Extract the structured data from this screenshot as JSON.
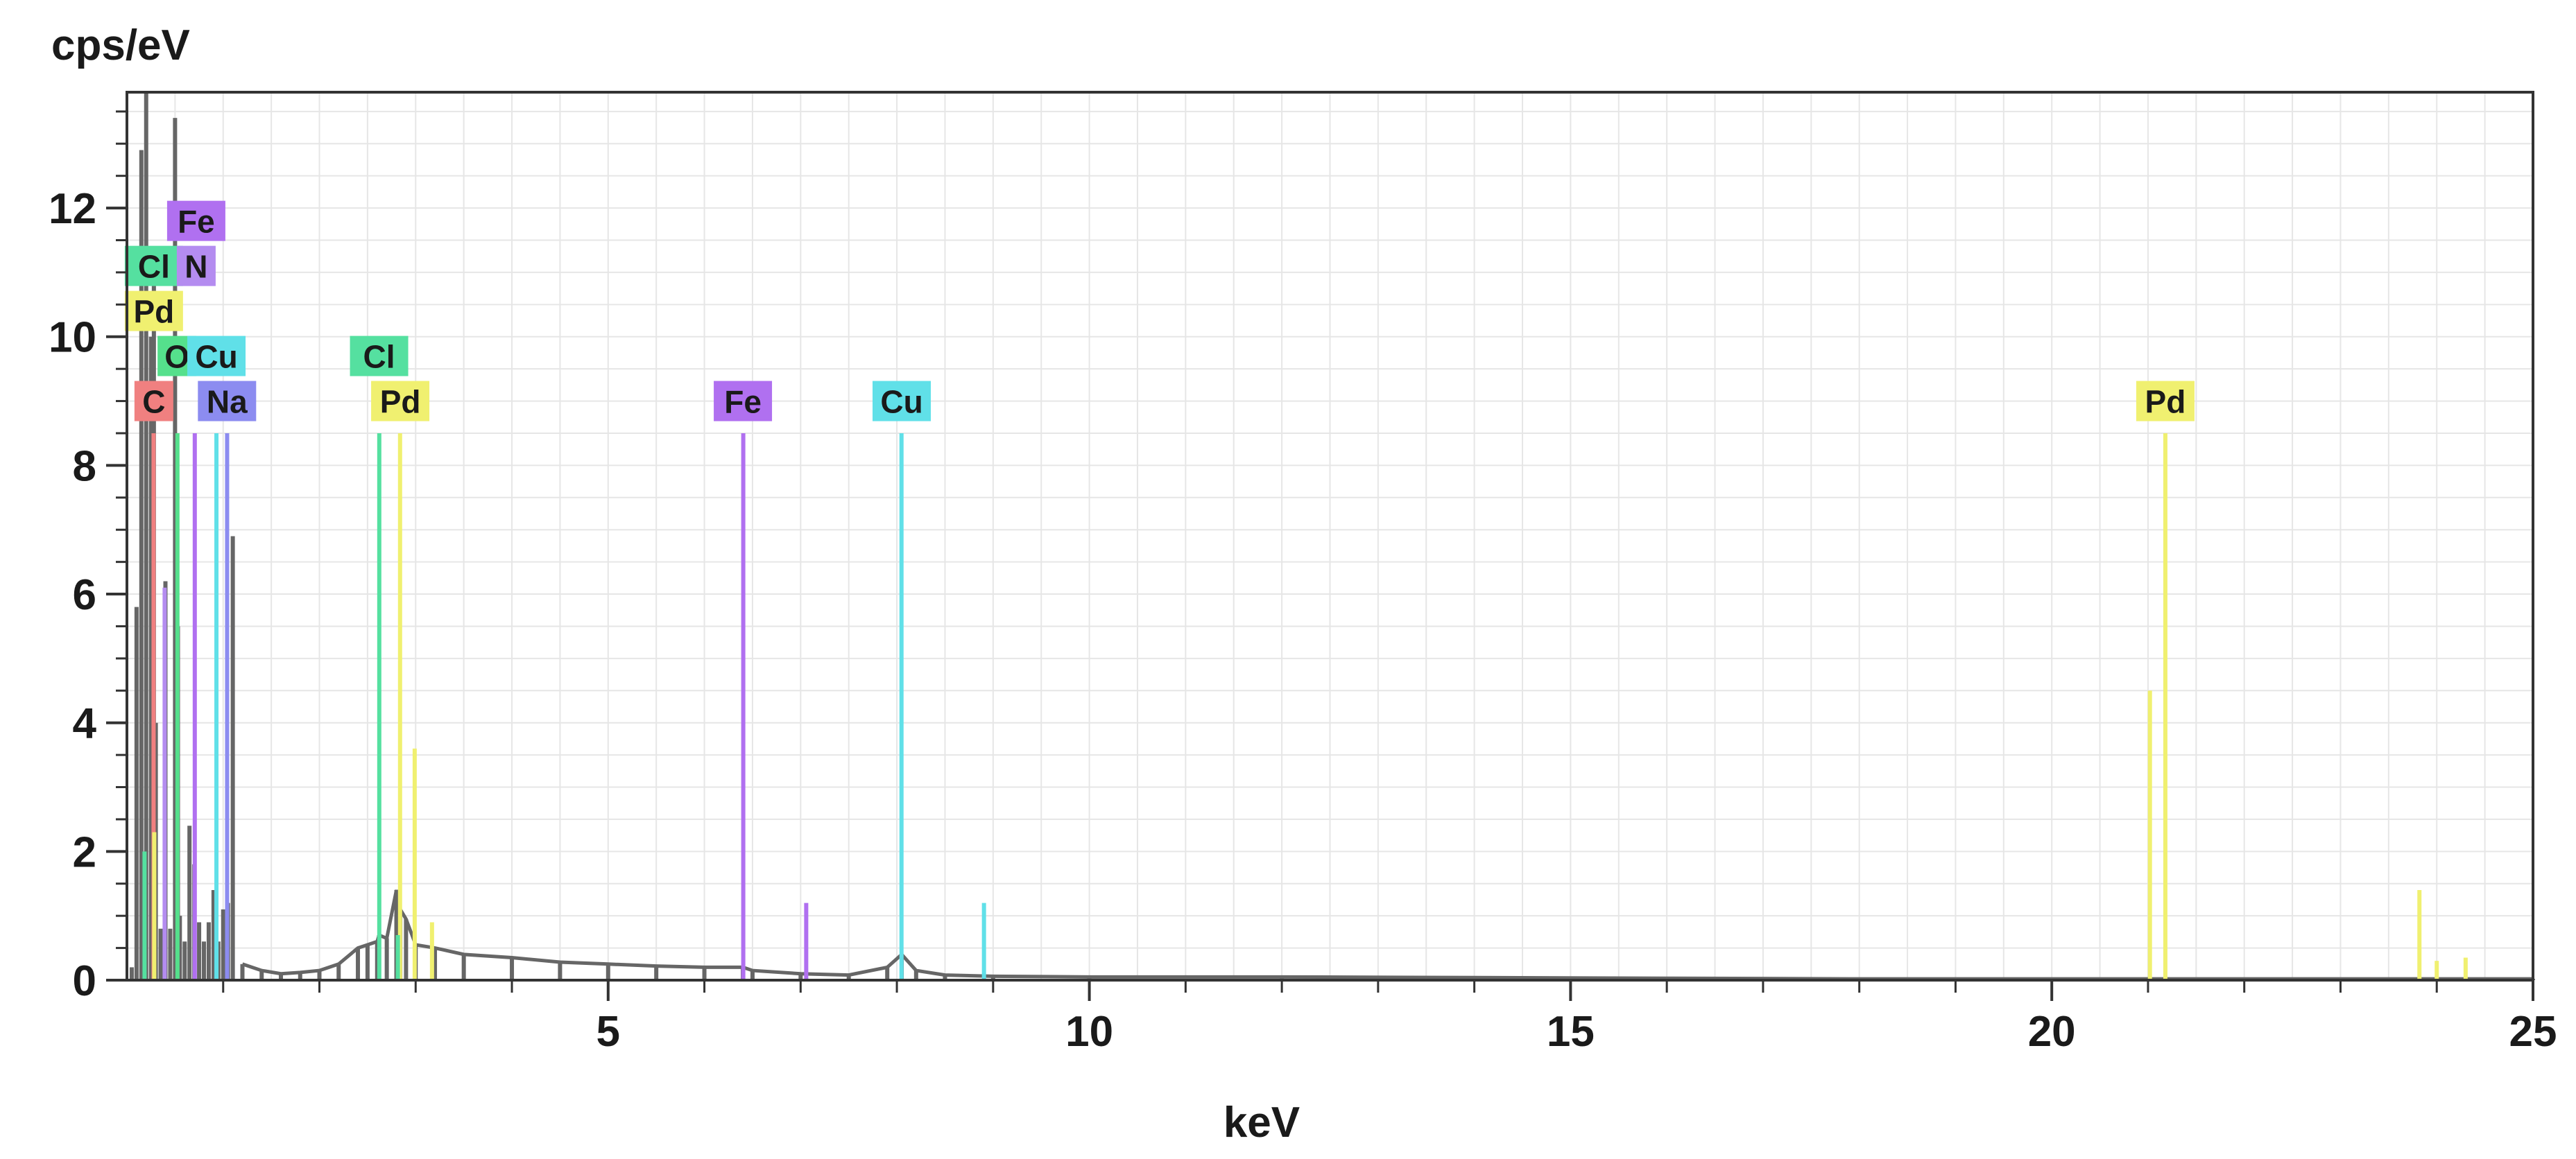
{
  "chart_data": {
    "type": "bar",
    "xlabel": "keV",
    "ylabel": "cps/eV",
    "xlim": [
      0,
      25
    ],
    "ylim": [
      0,
      13.8
    ],
    "x_ticks": [
      5,
      10,
      15,
      20,
      25
    ],
    "y_ticks": [
      0,
      2,
      4,
      6,
      8,
      10,
      12
    ],
    "grid": true,
    "element_colors": {
      "C": "#f08080",
      "N": "#b48cf0",
      "O": "#55e08c",
      "Na": "#8c8cf0",
      "Cl": "#55e0a0",
      "Fe": "#b070f0",
      "Cu": "#60e0e8",
      "Pd": "#f0f070"
    },
    "element_labels": [
      {
        "element": "Fe",
        "x": 0.72,
        "y": 11.8
      },
      {
        "element": "Cl",
        "x": 0.28,
        "y": 11.1
      },
      {
        "element": "N",
        "x": 0.72,
        "y": 11.1
      },
      {
        "element": "Pd",
        "x": 0.28,
        "y": 10.4
      },
      {
        "element": "O",
        "x": 0.52,
        "y": 9.7
      },
      {
        "element": "Cu",
        "x": 0.93,
        "y": 9.7
      },
      {
        "element": "C",
        "x": 0.28,
        "y": 9.0
      },
      {
        "element": "Na",
        "x": 1.04,
        "y": 9.0
      },
      {
        "element": "Cl",
        "x": 2.62,
        "y": 9.7
      },
      {
        "element": "Pd",
        "x": 2.84,
        "y": 9.0
      },
      {
        "element": "Fe",
        "x": 6.4,
        "y": 9.0
      },
      {
        "element": "Cu",
        "x": 8.05,
        "y": 9.0
      },
      {
        "element": "Pd",
        "x": 21.18,
        "y": 9.0
      }
    ],
    "element_lines": [
      {
        "element": "C",
        "x": 0.277,
        "y": 8.5
      },
      {
        "element": "N",
        "x": 0.392,
        "y": 6.1
      },
      {
        "element": "O",
        "x": 0.525,
        "y": 8.5
      },
      {
        "element": "Fe",
        "x": 0.705,
        "y": 8.5
      },
      {
        "element": "Cu",
        "x": 0.93,
        "y": 8.5
      },
      {
        "element": "Na",
        "x": 1.041,
        "y": 8.5
      },
      {
        "element": "Pd",
        "x": 0.284,
        "y": 2.3
      },
      {
        "element": "Cl",
        "x": 0.183,
        "y": 2.0
      },
      {
        "element": "Cl",
        "x": 2.622,
        "y": 8.5
      },
      {
        "element": "Pd",
        "x": 2.838,
        "y": 8.5
      },
      {
        "element": "Pd",
        "x": 2.99,
        "y": 3.6
      },
      {
        "element": "Cl",
        "x": 2.815,
        "y": 0.7
      },
      {
        "element": "Pd",
        "x": 3.17,
        "y": 0.9
      },
      {
        "element": "Fe",
        "x": 6.404,
        "y": 8.5
      },
      {
        "element": "Fe",
        "x": 7.058,
        "y": 1.2
      },
      {
        "element": "Cu",
        "x": 8.048,
        "y": 8.5
      },
      {
        "element": "Cu",
        "x": 8.905,
        "y": 1.2
      },
      {
        "element": "Pd",
        "x": 21.02,
        "y": 4.5
      },
      {
        "element": "Pd",
        "x": 21.18,
        "y": 8.5
      },
      {
        "element": "Pd",
        "x": 23.82,
        "y": 1.4
      },
      {
        "element": "Pd",
        "x": 24.0,
        "y": 0.3
      },
      {
        "element": "Pd",
        "x": 24.3,
        "y": 0.35
      }
    ],
    "spectrum": {
      "color": "#666666",
      "x": [
        0.05,
        0.1,
        0.15,
        0.2,
        0.25,
        0.28,
        0.3,
        0.35,
        0.4,
        0.45,
        0.5,
        0.53,
        0.55,
        0.6,
        0.65,
        0.7,
        0.75,
        0.8,
        0.85,
        0.9,
        0.95,
        1.0,
        1.05,
        1.1,
        1.2,
        1.4,
        1.6,
        1.8,
        2.0,
        2.2,
        2.4,
        2.5,
        2.6,
        2.62,
        2.7,
        2.8,
        2.84,
        2.9,
        3.0,
        3.2,
        3.5,
        4.0,
        4.5,
        5.0,
        5.5,
        6.0,
        6.4,
        6.5,
        7.0,
        7.5,
        7.9,
        8.05,
        8.2,
        8.5,
        9.0,
        10.0,
        12.0,
        14.0,
        16.0,
        18.0,
        20.0,
        22.0,
        24.0,
        25.0
      ],
      "y": [
        0.2,
        5.8,
        12.9,
        13.8,
        10.0,
        11.2,
        4.0,
        0.8,
        6.2,
        0.8,
        13.4,
        5.5,
        1.0,
        0.6,
        2.4,
        1.8,
        0.9,
        0.6,
        0.9,
        1.4,
        0.6,
        1.1,
        1.2,
        6.9,
        0.25,
        0.15,
        0.1,
        0.12,
        0.15,
        0.25,
        0.5,
        0.55,
        0.6,
        0.7,
        0.65,
        1.4,
        1.1,
        0.95,
        0.55,
        0.5,
        0.4,
        0.35,
        0.28,
        0.25,
        0.22,
        0.2,
        0.2,
        0.15,
        0.1,
        0.08,
        0.2,
        0.4,
        0.15,
        0.08,
        0.06,
        0.05,
        0.05,
        0.04,
        0.03,
        0.02,
        0.02,
        0.02,
        0.02,
        0.02
      ]
    }
  }
}
